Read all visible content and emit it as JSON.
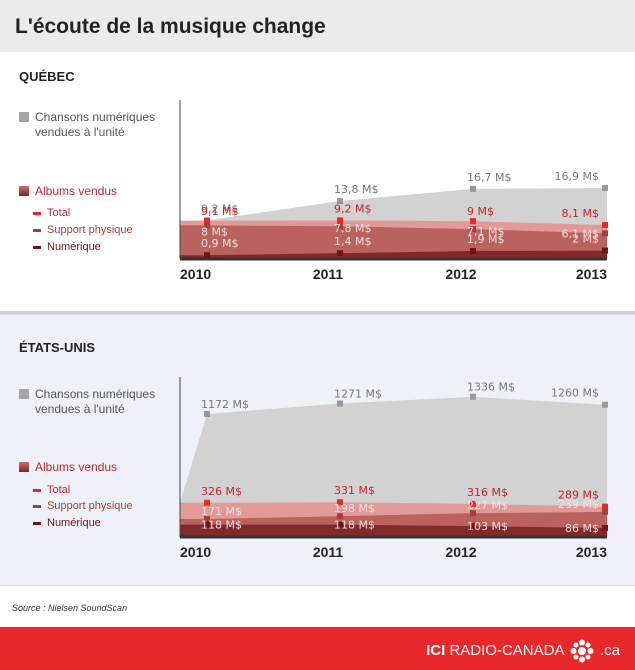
{
  "title": "L'écoute de la musique change",
  "source": "Source : Nielsen SoundScan",
  "brand": {
    "left": "ICI",
    "right": "RADIO-CANADA",
    "suffix": ".ca"
  },
  "legend": {
    "digital_songs": "Chansons numériques vendues à l'unité",
    "albums": "Albums vendus",
    "total": "Total",
    "physical": "Support physique",
    "digital": "Numérique"
  },
  "colors": {
    "songs_area": "#d2d2d2",
    "songs_marker": "#999999",
    "total_area": "#e29a98",
    "physical_area": "#b9625e",
    "digital_area": "#822a29",
    "total_marker": "#e8282b",
    "physical_marker": "#a0403c",
    "digital_marker": "#6e1515",
    "brand_red": "#e8282b"
  },
  "chart_data": [
    {
      "type": "area",
      "region": "QUÉBEC",
      "categories": [
        "2010",
        "2011",
        "2012",
        "2013"
      ],
      "series": [
        {
          "name": "Chansons numériques vendues à l'unité",
          "values": [
            9.2,
            13.8,
            16.7,
            16.9
          ],
          "labels": [
            "9,2 M$",
            "13,8 M$",
            "16,7 M$",
            "16,9 M$"
          ]
        },
        {
          "name": "Total",
          "values": [
            9.1,
            9.2,
            9,
            8.1
          ],
          "labels": [
            "9,1 M$",
            "9,2 M$",
            "9 M$",
            "8,1 M$"
          ]
        },
        {
          "name": "Support physique",
          "values": [
            8,
            7.8,
            7.1,
            6.1
          ],
          "labels": [
            "8 M$",
            "7,8 M$",
            "7,1 M$",
            "6,1 M$"
          ]
        },
        {
          "name": "Numérique",
          "values": [
            0.9,
            1.4,
            1.9,
            2
          ],
          "labels": [
            "0,9 M$",
            "1,4 M$",
            "1,9 M$",
            "2 M$"
          ]
        }
      ]
    },
    {
      "type": "area",
      "region": "ÉTATS-UNIS",
      "categories": [
        "2010",
        "2011",
        "2012",
        "2013"
      ],
      "series": [
        {
          "name": "Chansons numériques vendues à l'unité",
          "values": [
            1172,
            1271,
            1336,
            1260
          ],
          "labels": [
            "1172 M$",
            "1271 M$",
            "1336 M$",
            "1260 M$"
          ]
        },
        {
          "name": "Total",
          "values": [
            326,
            331,
            316,
            289
          ],
          "labels": [
            "326 M$",
            "331 M$",
            "316 M$",
            "289 M$"
          ]
        },
        {
          "name": "Support physique",
          "values": [
            171,
            198,
            227,
            239
          ],
          "labels": [
            "171 M$",
            "198 M$",
            "227 M$",
            "239 M$"
          ]
        },
        {
          "name": "Numérique",
          "values": [
            118,
            118,
            103,
            86
          ],
          "labels": [
            "118 M$",
            "118 M$",
            "103 M$",
            "86 M$"
          ]
        }
      ]
    }
  ]
}
